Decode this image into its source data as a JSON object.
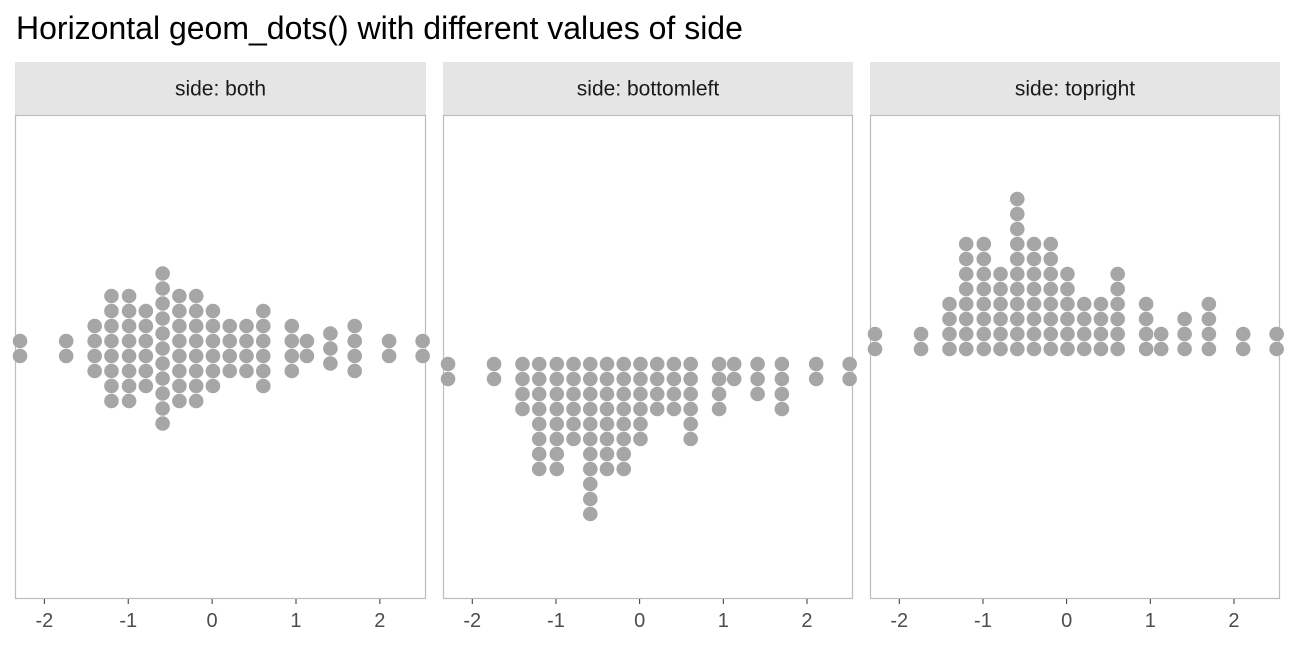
{
  "chart_data": {
    "type": "scatter",
    "title": "Horizontal geom_dots() with different values of side",
    "xlim": [
      -2.35,
      2.55
    ],
    "x_ticks": [
      -2,
      -1,
      0,
      1,
      2
    ],
    "x_tick_labels": [
      "-2",
      "-1",
      "0",
      "1",
      "2"
    ],
    "grid": false,
    "dot_color": "#a6a6a6",
    "strip_color": "#e5e5e5",
    "dot_columns": [
      {
        "x": -2.29,
        "count": 2
      },
      {
        "x": -1.74,
        "count": 2
      },
      {
        "x": -1.4,
        "count": 4
      },
      {
        "x": -1.2,
        "count": 8
      },
      {
        "x": -0.99,
        "count": 8
      },
      {
        "x": -0.79,
        "count": 6
      },
      {
        "x": -0.59,
        "count": 11
      },
      {
        "x": -0.39,
        "count": 8
      },
      {
        "x": -0.19,
        "count": 8
      },
      {
        "x": 0.01,
        "count": 6
      },
      {
        "x": 0.21,
        "count": 4
      },
      {
        "x": 0.41,
        "count": 4
      },
      {
        "x": 0.61,
        "count": 6
      },
      {
        "x": 0.95,
        "count": 4
      },
      {
        "x": 1.13,
        "count": 2
      },
      {
        "x": 1.41,
        "count": 3
      },
      {
        "x": 1.7,
        "count": 4
      },
      {
        "x": 2.11,
        "count": 2
      },
      {
        "x": 2.51,
        "count": 2
      }
    ],
    "facets": [
      {
        "label": "side: both",
        "side": "both"
      },
      {
        "label": "side: bottomleft",
        "side": "bottomleft"
      },
      {
        "label": "side: topright",
        "side": "topright"
      }
    ]
  }
}
